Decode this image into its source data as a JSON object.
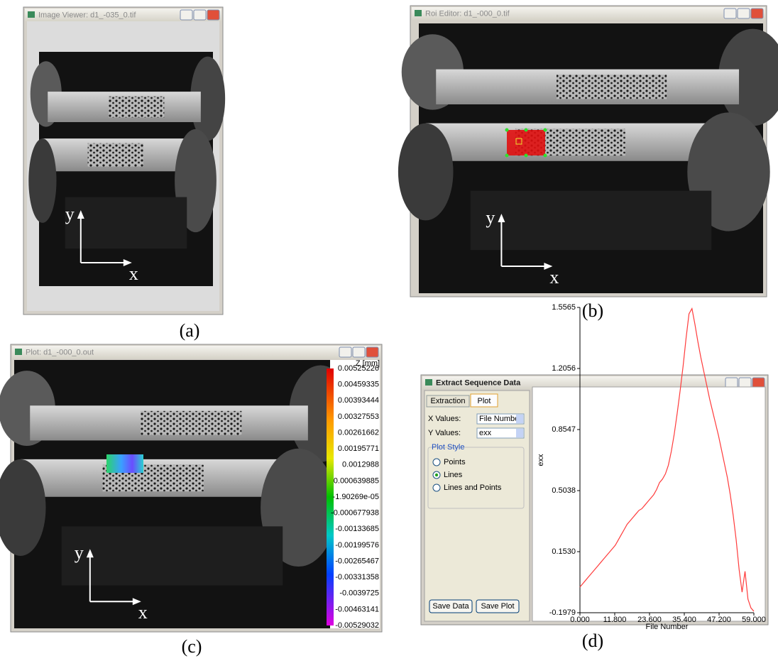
{
  "panels": [
    {
      "window_title": "Image Viewer: d1_-035_0.tif",
      "axis_y": "y",
      "axis_x": "x",
      "caption": "(a)"
    },
    {
      "window_title": "Roi Editor: d1_-000_0.tif",
      "axis_y": "y",
      "axis_x": "x",
      "caption": "(b)"
    },
    {
      "window_title": "Plot: d1_-000_0.out",
      "axis_y": "y",
      "axis_x": "x",
      "caption": "(c)",
      "colorbar": {
        "title": "Z [mm]",
        "labels": [
          "0.00525226",
          "0.00459335",
          "0.00393444",
          "0.00327553",
          "0.00261662",
          "0.00195771",
          "0.0012988",
          "0.000639885",
          "-1.90269e-05",
          "-0.000677938",
          "-0.00133685",
          "-0.00199576",
          "-0.00265467",
          "-0.00331358",
          "-0.0039725",
          "-0.00463141",
          "-0.00529032"
        ]
      }
    },
    {
      "window_title": "Extract Sequence Data",
      "caption": "(d)",
      "tabs": [
        "Extraction",
        "Plot"
      ],
      "x_values_label": "X Values:",
      "x_values": "File Number",
      "y_values_label": "Y Values:",
      "y_values": "exx",
      "plot_style_title": "Plot Style",
      "plot_style_options": [
        "Points",
        "Lines",
        "Lines and Points"
      ],
      "buttons": [
        "Save Data",
        "Save Plot"
      ]
    }
  ],
  "chart_data": {
    "type": "line",
    "xlabel": "File Number",
    "ylabel": "exx",
    "x": [
      0,
      1,
      2,
      3,
      4,
      5,
      6,
      7,
      8,
      9,
      10,
      11,
      12,
      13,
      14,
      15,
      16,
      17,
      18,
      19,
      20,
      21,
      22,
      23,
      24,
      25,
      26,
      27,
      28,
      29,
      30,
      31,
      32,
      33,
      34,
      35,
      36,
      37,
      38,
      39,
      40,
      41,
      42,
      43,
      44,
      45,
      46,
      47,
      48,
      49,
      50,
      51,
      52,
      53,
      54,
      55,
      56,
      57,
      58,
      59
    ],
    "series": [
      {
        "color": "#ff3b3b",
        "values": [
          -0.05,
          -0.03,
          -0.01,
          0.01,
          0.03,
          0.05,
          0.07,
          0.09,
          0.11,
          0.13,
          0.15,
          0.17,
          0.19,
          0.22,
          0.25,
          0.28,
          0.31,
          0.33,
          0.35,
          0.37,
          0.39,
          0.4,
          0.42,
          0.44,
          0.46,
          0.48,
          0.51,
          0.55,
          0.57,
          0.6,
          0.65,
          0.73,
          0.83,
          0.95,
          1.08,
          1.22,
          1.38,
          1.52,
          1.55,
          1.46,
          1.36,
          1.27,
          1.19,
          1.11,
          1.03,
          0.96,
          0.89,
          0.82,
          0.74,
          0.66,
          0.58,
          0.48,
          0.36,
          0.22,
          0.05,
          -0.08,
          0.04,
          -0.12,
          -0.17,
          -0.19
        ]
      }
    ],
    "xlim": [
      0,
      59
    ],
    "xticks": [
      {
        "value": 0,
        "label": "0.000"
      },
      {
        "value": 11.8,
        "label": "11.800"
      },
      {
        "value": 23.6,
        "label": "23.600"
      },
      {
        "value": 35.4,
        "label": "35.400"
      },
      {
        "value": 47.2,
        "label": "47.200"
      },
      {
        "value": 59,
        "label": "59.000"
      }
    ],
    "ylim": [
      -0.1979,
      1.5565
    ],
    "yticks": [
      -0.1979,
      {
        "value": 0.153,
        "label": "0.1530"
      },
      0.5038,
      0.8547,
      1.2056,
      1.5565
    ]
  }
}
